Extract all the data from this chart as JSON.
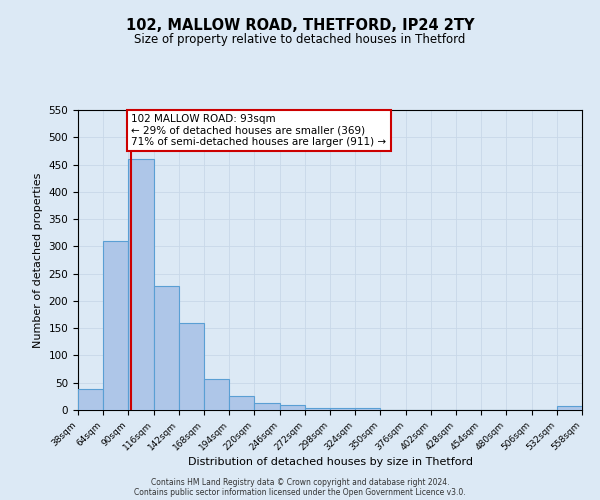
{
  "title": "102, MALLOW ROAD, THETFORD, IP24 2TY",
  "subtitle": "Size of property relative to detached houses in Thetford",
  "xlabel": "Distribution of detached houses by size in Thetford",
  "ylabel": "Number of detached properties",
  "bin_edges": [
    38,
    64,
    90,
    116,
    142,
    168,
    194,
    220,
    246,
    272,
    298,
    324,
    350,
    376,
    402,
    428,
    454,
    480,
    506,
    532,
    558
  ],
  "bar_heights": [
    39,
    310,
    460,
    228,
    160,
    57,
    26,
    12,
    10,
    3,
    3,
    3,
    0,
    0,
    0,
    0,
    0,
    0,
    0,
    8
  ],
  "bar_color": "#aec6e8",
  "bar_edge_color": "#5a9fd4",
  "grid_color": "#c8d8e8",
  "bg_color": "#dce9f5",
  "property_size": 93,
  "vline_color": "#cc0000",
  "annotation_line1": "102 MALLOW ROAD: 93sqm",
  "annotation_line2": "← 29% of detached houses are smaller (369)",
  "annotation_line3": "71% of semi-detached houses are larger (911) →",
  "annotation_box_color": "#ffffff",
  "annotation_box_edge": "#cc0000",
  "ylim": [
    0,
    550
  ],
  "yticks": [
    0,
    50,
    100,
    150,
    200,
    250,
    300,
    350,
    400,
    450,
    500,
    550
  ],
  "footer1": "Contains HM Land Registry data © Crown copyright and database right 2024.",
  "footer2": "Contains public sector information licensed under the Open Government Licence v3.0."
}
